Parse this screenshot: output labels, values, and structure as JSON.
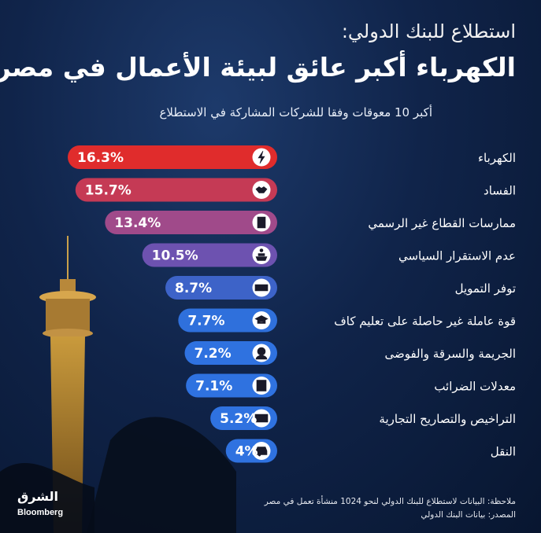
{
  "header": {
    "title_line1": "استطلاع للبنك الدولي:",
    "title_line2": "الكهرباء أكبر عائق لبيئة الأعمال في مصر",
    "subtitle": "أكبر 10 معوقات وفقا للشركات المشاركة في الاستطلاع"
  },
  "chart_data": {
    "type": "bar",
    "orientation": "horizontal",
    "unit": "%",
    "categories": [
      "الكهرباء",
      "الفساد",
      "ممارسات القطاع غير الرسمي",
      "عدم الاستقرار السياسي",
      "توفر التمويل",
      "قوة عاملة غير حاصلة على تعليم كاف",
      "الجريمة والسرقة والفوضى",
      "معدلات الضرائب",
      "التراخيص والتصاريح التجارية",
      "النقل"
    ],
    "values": [
      16.3,
      15.7,
      13.4,
      10.5,
      8.7,
      7.7,
      7.2,
      7.1,
      5.2,
      4
    ],
    "value_labels": [
      "16.3%",
      "15.7%",
      "13.4%",
      "10.5%",
      "8.7%",
      "7.7%",
      "7.2%",
      "7.1%",
      "5.2%",
      "4%"
    ],
    "icons": [
      "lightning-icon",
      "handshake-icon",
      "building-icon",
      "podium-icon",
      "money-icon",
      "graduation-cap-icon",
      "thief-icon",
      "tax-document-icon",
      "license-card-icon",
      "car-icon"
    ],
    "colors": [
      "#e02c2c",
      "#c53a55",
      "#a04a8a",
      "#6d52b0",
      "#3d63c8",
      "#2f70dc",
      "#2f72e0",
      "#2f72e0",
      "#2f72e0",
      "#2f72e0"
    ],
    "xlim": [
      0,
      16.3
    ]
  },
  "footer": {
    "note": "ملاحظة: البيانات لاستطلاع للبنك الدولي لنحو 1024 منشأة تعمل في مصر",
    "source": "المصدر: بيانات البنك الدولي"
  },
  "logo": {
    "brand_ar": "الشرق",
    "brand_en": "Bloomberg"
  }
}
